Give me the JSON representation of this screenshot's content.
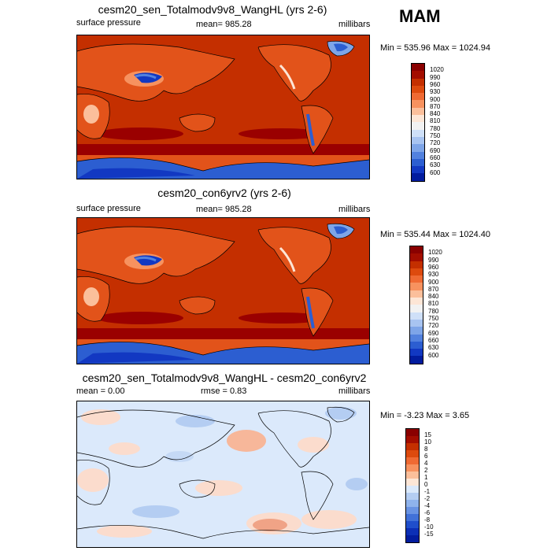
{
  "season": "MAM",
  "panels": [
    {
      "title": "cesm20_sen_Totalmodv9v8_WangHL (yrs 2-6)",
      "left": "surface pressure",
      "center": "mean= 985.28",
      "right": "millibars",
      "minmax": "Min = 535.96 Max = 1024.94",
      "variable": "surface pressure",
      "mean": 985.28,
      "min": 535.96,
      "max": 1024.94,
      "colors": {
        "ocean": "#c42f00",
        "land": "#e2531a",
        "high": "#9a0000",
        "icecap": "#1a3fd0"
      }
    },
    {
      "title": "cesm20_con6yrv2 (yrs 2-6)",
      "left": "surface pressure",
      "center": "mean= 985.28",
      "right": "millibars",
      "minmax": "Min = 535.44 Max = 1024.40",
      "variable": "surface pressure",
      "mean": 985.28,
      "min": 535.44,
      "max": 1024.4,
      "colors": {
        "ocean": "#c42f00",
        "land": "#e2531a",
        "high": "#9a0000",
        "icecap": "#1a3fd0"
      }
    },
    {
      "title": "cesm20_sen_Totalmodv9v8_WangHL - cesm20_con6yrv2",
      "left": "mean =   0.00",
      "center": "rmse =   0.83",
      "right": "millibars",
      "minmax": "Min =  -3.23 Max =   3.65",
      "mean": 0.0,
      "rmse": 0.83,
      "min": -3.23,
      "max": 3.65,
      "colors": {
        "base": "#dbe9fb",
        "positive": "#fbdccd",
        "strong_positive": "#f0a386",
        "negative": "#b4cdf2"
      }
    }
  ],
  "colorbars": {
    "abs": {
      "labels": [
        "1020",
        "990",
        "960",
        "930",
        "900",
        "870",
        "840",
        "810",
        "780",
        "750",
        "720",
        "690",
        "660",
        "630",
        "600"
      ],
      "colors": [
        "#8a0000",
        "#a30d00",
        "#c42f00",
        "#dd4a0e",
        "#ef6a33",
        "#f7925f",
        "#fbbf9b",
        "#fde6d6",
        "#f2f2f2",
        "#cfe0f8",
        "#a8c4f1",
        "#7ea5e8",
        "#5281de",
        "#2c5ed1",
        "#1238c2",
        "#021c9e"
      ]
    },
    "diff": {
      "labels": [
        "15",
        "10",
        "8",
        "6",
        "4",
        "2",
        "1",
        "0",
        "-1",
        "-2",
        "-4",
        "-6",
        "-8",
        "-10",
        "-15"
      ],
      "colors": [
        "#8a0000",
        "#a30d00",
        "#c42f00",
        "#dd4a0e",
        "#ef6a33",
        "#f7925f",
        "#fbbf9b",
        "#fde6d6",
        "#dbe9fb",
        "#b4cdf2",
        "#8fb3ec",
        "#6993e3",
        "#4171d8",
        "#1f4ecb",
        "#0c2fb6",
        "#021c9e"
      ]
    }
  }
}
